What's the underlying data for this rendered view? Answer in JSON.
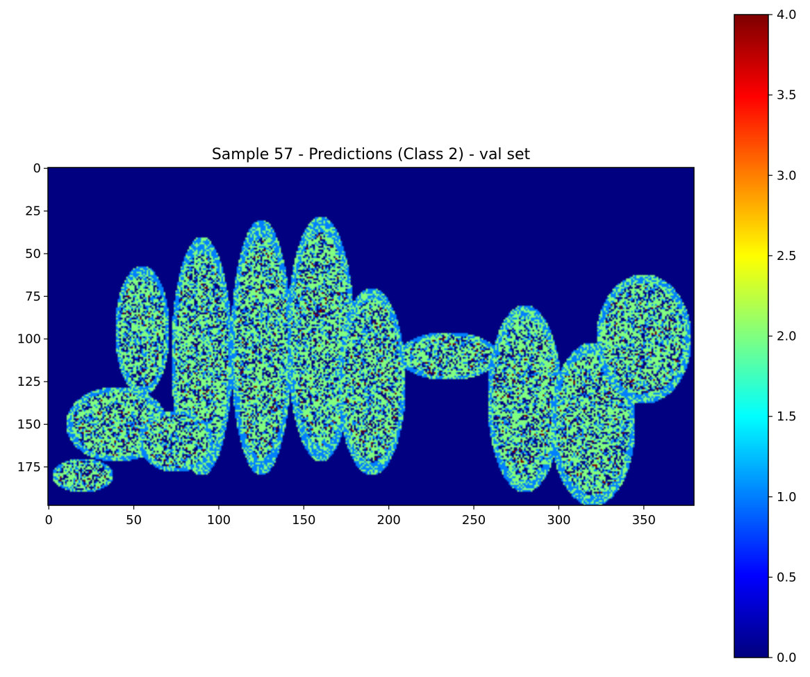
{
  "chart_data": [
    {
      "type": "heatmap",
      "title": "Sample 57 - Predictions (Class 2) - val set",
      "xlabel": "",
      "ylabel": "",
      "xlim": [
        -0.5,
        379.5
      ],
      "ylim": [
        197.5,
        -0.5
      ],
      "x_ticks": [
        0,
        50,
        100,
        150,
        200,
        250,
        300,
        350
      ],
      "x_tick_labels": [
        "0",
        "50",
        "100",
        "150",
        "200",
        "250",
        "300",
        "350"
      ],
      "y_ticks": [
        0,
        25,
        50,
        75,
        100,
        125,
        150,
        175
      ],
      "y_tick_labels": [
        "0",
        "25",
        "50",
        "75",
        "100",
        "125",
        "150",
        "175"
      ],
      "colormap": "jet",
      "background_value": 0,
      "value_counts_note_free": null,
      "tissue_regions": [
        {
          "label_value": 2,
          "cx": 55,
          "cy": 95,
          "rx": 16,
          "ry": 38
        },
        {
          "label_value": 2,
          "cx": 90,
          "cy": 110,
          "rx": 18,
          "ry": 70
        },
        {
          "label_value": 2,
          "cx": 125,
          "cy": 105,
          "rx": 18,
          "ry": 75
        },
        {
          "label_value": 2,
          "cx": 160,
          "cy": 100,
          "rx": 20,
          "ry": 72
        },
        {
          "label_value": 2,
          "cx": 190,
          "cy": 125,
          "rx": 20,
          "ry": 55
        },
        {
          "label_value": 2,
          "cx": 235,
          "cy": 110,
          "rx": 30,
          "ry": 14
        },
        {
          "label_value": 2,
          "cx": 280,
          "cy": 135,
          "rx": 22,
          "ry": 55
        },
        {
          "label_value": 2,
          "cx": 320,
          "cy": 150,
          "rx": 25,
          "ry": 48
        },
        {
          "label_value": 2,
          "cx": 350,
          "cy": 100,
          "rx": 28,
          "ry": 38
        },
        {
          "label_value": 2,
          "cx": 40,
          "cy": 150,
          "rx": 30,
          "ry": 22
        },
        {
          "label_value": 2,
          "cx": 75,
          "cy": 160,
          "rx": 22,
          "ry": 18
        },
        {
          "label_value": 2,
          "cx": 20,
          "cy": 180,
          "rx": 18,
          "ry": 10
        }
      ]
    },
    {
      "type": "heatmap",
      "title": "",
      "colorbar": true,
      "ylim": [
        0.0,
        4.0
      ],
      "y_ticks": [
        0.0,
        0.5,
        1.0,
        1.5,
        2.0,
        2.5,
        3.0,
        3.5,
        4.0
      ],
      "y_tick_labels": [
        "0.0",
        "0.5",
        "1.0",
        "1.5",
        "2.0",
        "2.5",
        "3.0",
        "3.5",
        "4.0"
      ],
      "colormap": "jet"
    }
  ]
}
